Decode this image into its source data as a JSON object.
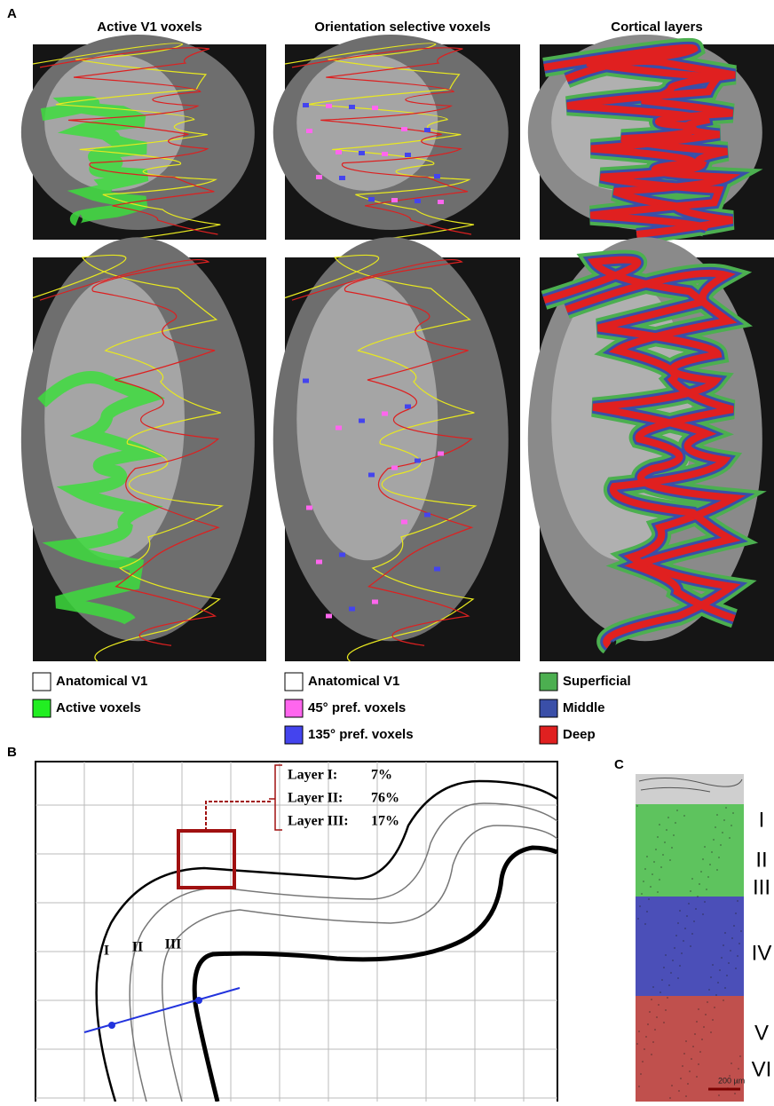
{
  "panel_a": {
    "label": "A",
    "columns": [
      {
        "title": "Active V1 voxels",
        "legend": [
          {
            "label": "Anatomical V1",
            "color": "#ffffff"
          },
          {
            "label": "Active voxels",
            "color": "#22ee22"
          }
        ]
      },
      {
        "title": "Orientation selective voxels",
        "legend": [
          {
            "label": "Anatomical V1",
            "color": "#ffffff"
          },
          {
            "label": "45° pref. voxels",
            "color": "#ff66ee"
          },
          {
            "label": "135° pref. voxels",
            "color": "#4444ee"
          }
        ]
      },
      {
        "title": "Cortical layers",
        "legend": [
          {
            "label": "Superficial",
            "color": "#4caf50"
          },
          {
            "label": "Middle",
            "color": "#3a4fa8"
          },
          {
            "label": "Deep",
            "color": "#e02020"
          }
        ]
      }
    ]
  },
  "panel_b": {
    "label": "B",
    "box_rows": [
      [
        "Layer I:",
        "7%"
      ],
      [
        "Layer II:",
        "76%"
      ],
      [
        "Layer III:",
        "17%"
      ]
    ],
    "layer_labels": [
      "I",
      "II",
      "III"
    ]
  },
  "panel_c": {
    "label": "C",
    "layers": [
      "I",
      "II",
      "III",
      "IV",
      "V",
      "VI"
    ],
    "scale": "200 µm"
  }
}
